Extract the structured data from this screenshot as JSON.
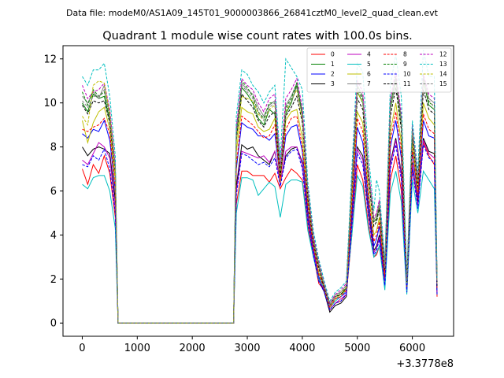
{
  "chart_data": {
    "type": "line",
    "suptitle": "Data file: modeM0/AS1A09_145T01_9000003866_26841cztM0_level2_quad_clean.evt",
    "title": "Quadrant 1 module wise count rates with 100.0s bins.",
    "xlabel": "",
    "ylabel": "",
    "x_offset_label": "+3.3778e8",
    "xlim": [
      -350,
      6750
    ],
    "ylim": [
      -0.6,
      12.6
    ],
    "x_ticks": [
      0,
      1000,
      2000,
      3000,
      4000,
      5000,
      6000
    ],
    "y_ticks": [
      0,
      2,
      4,
      6,
      8,
      10,
      12
    ],
    "x_tick_labels": [
      "0",
      "1000",
      "2000",
      "3000",
      "4000",
      "5000",
      "6000"
    ],
    "y_tick_labels": [
      "0",
      "2",
      "4",
      "6",
      "8",
      "10",
      "12"
    ],
    "legend_position": "top-right",
    "grid": false,
    "x": [
      0,
      100,
      200,
      300,
      400,
      500,
      600,
      650,
      700,
      800,
      900,
      1000,
      1100,
      1200,
      1300,
      1400,
      1500,
      1600,
      1700,
      1800,
      1900,
      2000,
      2100,
      2200,
      2300,
      2400,
      2500,
      2600,
      2700,
      2750,
      2800,
      2900,
      3000,
      3100,
      3200,
      3300,
      3400,
      3500,
      3600,
      3700,
      3800,
      3900,
      4000,
      4100,
      4200,
      4300,
      4400,
      4500,
      4600,
      4700,
      4800,
      4900,
      5000,
      5100,
      5200,
      5300,
      5350,
      5400,
      5500,
      5600,
      5700,
      5800,
      5900,
      6000,
      6100,
      6200,
      6300,
      6400,
      6450
    ],
    "series": [
      {
        "name": "0",
        "color": "#ff0000",
        "dash": "solid",
        "values": [
          7.0,
          6.3,
          7.2,
          6.8,
          7.6,
          6.8,
          4.8,
          0,
          0,
          0,
          0,
          0,
          0,
          0,
          0,
          0,
          0,
          0,
          0,
          0,
          0,
          0,
          0,
          0,
          0,
          0,
          0,
          0,
          0,
          0,
          5.4,
          6.9,
          6.9,
          6.7,
          6.7,
          6.7,
          6.4,
          6.8,
          6.1,
          6.6,
          7.0,
          6.8,
          6.5,
          4.4,
          3.1,
          1.8,
          1.5,
          0.6,
          0.9,
          1.0,
          1.3,
          4.0,
          7.2,
          6.5,
          4.5,
          3.0,
          3.1,
          3.5,
          1.8,
          6.5,
          7.6,
          6.0,
          1.5,
          7.0,
          5.5,
          8.2,
          7.6,
          7.2,
          1.2
        ]
      },
      {
        "name": "1",
        "color": "#008000",
        "dash": "solid",
        "values": [
          10.0,
          9.6,
          10.4,
          10.2,
          10.3,
          9.2,
          7.0,
          0,
          0,
          0,
          0,
          0,
          0,
          0,
          0,
          0,
          0,
          0,
          0,
          0,
          0,
          0,
          0,
          0,
          0,
          0,
          0,
          0,
          0,
          0,
          8.5,
          10.7,
          10.4,
          10.0,
          9.3,
          9.0,
          9.7,
          9.5,
          6.8,
          9.5,
          10.0,
          10.8,
          9.4,
          5.8,
          3.7,
          2.6,
          1.6,
          0.8,
          1.2,
          1.3,
          1.6,
          6.3,
          10.5,
          10.0,
          6.8,
          4.6,
          4.7,
          5.3,
          2.5,
          9.7,
          11.0,
          9.0,
          1.8,
          8.6,
          6.3,
          11.0,
          9.9,
          9.7,
          1.8
        ]
      },
      {
        "name": "2",
        "color": "#0000ff",
        "dash": "solid",
        "values": [
          8.6,
          8.4,
          8.8,
          8.7,
          9.2,
          8.3,
          6.0,
          0,
          0,
          0,
          0,
          0,
          0,
          0,
          0,
          0,
          0,
          0,
          0,
          0,
          0,
          0,
          0,
          0,
          0,
          0,
          0,
          0,
          0,
          0,
          7.0,
          9.1,
          8.9,
          8.8,
          8.5,
          8.5,
          8.3,
          8.6,
          6.5,
          8.5,
          8.9,
          9.0,
          7.8,
          5.1,
          3.4,
          2.1,
          1.5,
          0.7,
          1.1,
          1.2,
          1.4,
          5.0,
          8.9,
          8.2,
          5.6,
          3.5,
          3.8,
          4.4,
          2.0,
          8.0,
          9.2,
          7.5,
          1.6,
          7.8,
          5.7,
          9.2,
          8.5,
          8.4,
          1.4
        ]
      },
      {
        "name": "3",
        "color": "#000000",
        "dash": "solid",
        "values": [
          8.0,
          7.6,
          7.9,
          8.0,
          7.9,
          7.7,
          5.6,
          0,
          0,
          0,
          0,
          0,
          0,
          0,
          0,
          0,
          0,
          0,
          0,
          0,
          0,
          0,
          0,
          0,
          0,
          0,
          0,
          0,
          0,
          0,
          6.2,
          8.1,
          7.9,
          8.0,
          7.6,
          7.4,
          7.2,
          7.8,
          6.4,
          7.6,
          7.9,
          8.0,
          7.3,
          4.8,
          3.2,
          2.0,
          1.4,
          0.5,
          0.8,
          0.9,
          1.2,
          4.6,
          8.0,
          7.6,
          5.2,
          3.3,
          3.5,
          4.0,
          1.9,
          7.3,
          8.4,
          6.8,
          1.5,
          7.3,
          5.4,
          8.4,
          7.8,
          7.7,
          1.3
        ]
      },
      {
        "name": "4",
        "color": "#bf00bf",
        "dash": "solid",
        "values": [
          7.4,
          7.2,
          7.7,
          8.2,
          8.0,
          7.5,
          5.2,
          0,
          0,
          0,
          0,
          0,
          0,
          0,
          0,
          0,
          0,
          0,
          0,
          0,
          0,
          0,
          0,
          0,
          0,
          0,
          0,
          0,
          0,
          0,
          6.0,
          7.8,
          7.7,
          7.6,
          7.5,
          7.6,
          7.3,
          7.8,
          6.3,
          7.8,
          8.0,
          8.0,
          7.2,
          4.7,
          3.2,
          2.0,
          1.5,
          0.6,
          0.9,
          1.1,
          1.3,
          4.5,
          7.9,
          7.4,
          5.0,
          3.2,
          3.4,
          3.9,
          1.8,
          7.2,
          8.3,
          6.7,
          1.4,
          7.2,
          5.3,
          8.3,
          7.7,
          7.5,
          1.4
        ]
      },
      {
        "name": "5",
        "color": "#00bfbf",
        "dash": "solid",
        "values": [
          6.3,
          6.1,
          6.6,
          6.7,
          6.7,
          6.0,
          4.3,
          0,
          0,
          0,
          0,
          0,
          0,
          0,
          0,
          0,
          0,
          0,
          0,
          0,
          0,
          0,
          0,
          0,
          0,
          0,
          0,
          0,
          0,
          0,
          5.0,
          6.6,
          6.6,
          6.5,
          5.8,
          6.1,
          6.4,
          6.2,
          4.8,
          6.3,
          6.5,
          6.5,
          6.4,
          4.2,
          3.0,
          2.0,
          1.6,
          0.7,
          1.0,
          1.2,
          1.5,
          4.0,
          6.7,
          6.2,
          4.3,
          3.0,
          3.2,
          3.5,
          1.5,
          5.9,
          6.9,
          5.5,
          1.3,
          6.5,
          5.0,
          6.9,
          6.5,
          6.1,
          1.5
        ]
      },
      {
        "name": "6",
        "color": "#bfbf00",
        "dash": "solid",
        "values": [
          9.2,
          8.2,
          9.1,
          9.6,
          9.8,
          8.8,
          6.5,
          0,
          0,
          0,
          0,
          0,
          0,
          0,
          0,
          0,
          0,
          0,
          0,
          0,
          0,
          0,
          0,
          0,
          0,
          0,
          0,
          0,
          0,
          0,
          7.8,
          9.8,
          9.6,
          9.5,
          8.9,
          8.7,
          8.8,
          9.3,
          6.4,
          9.2,
          9.6,
          9.7,
          8.4,
          5.5,
          3.6,
          2.3,
          1.6,
          0.7,
          1.1,
          1.3,
          1.5,
          5.7,
          9.6,
          9.1,
          6.1,
          4.0,
          4.2,
          4.8,
          2.2,
          8.7,
          10.0,
          8.2,
          1.7,
          8.2,
          6.0,
          10.0,
          9.3,
          9.0,
          1.6
        ]
      },
      {
        "name": "7",
        "color": "#808080",
        "dash": "solid",
        "values": [
          10.3,
          10.0,
          10.5,
          10.2,
          10.8,
          9.5,
          7.1,
          0,
          0,
          0,
          0,
          0,
          0,
          0,
          0,
          0,
          0,
          0,
          0,
          0,
          0,
          0,
          0,
          0,
          0,
          0,
          0,
          0,
          0,
          0,
          8.7,
          10.9,
          10.6,
          10.4,
          9.8,
          9.4,
          9.9,
          10.1,
          7.0,
          9.9,
          10.3,
          10.9,
          9.6,
          6.0,
          3.9,
          2.7,
          1.7,
          0.9,
          1.3,
          1.4,
          1.7,
          6.5,
          10.8,
          10.3,
          7.0,
          4.7,
          4.9,
          5.5,
          2.6,
          10.0,
          11.2,
          9.3,
          1.9,
          8.8,
          6.5,
          11.2,
          10.2,
          10.0,
          1.9
        ]
      },
      {
        "name": "8",
        "color": "#ff0000",
        "dash": "dashed",
        "values": [
          8.8,
          8.7,
          8.9,
          9.0,
          9.3,
          8.6,
          6.1,
          0,
          0,
          0,
          0,
          0,
          0,
          0,
          0,
          0,
          0,
          0,
          0,
          0,
          0,
          0,
          0,
          0,
          0,
          0,
          0,
          0,
          0,
          0,
          7.2,
          9.4,
          9.2,
          9.0,
          8.7,
          8.4,
          8.5,
          9.0,
          6.5,
          8.8,
          9.3,
          9.4,
          8.0,
          5.3,
          3.5,
          2.2,
          1.6,
          0.7,
          1.1,
          1.2,
          1.5,
          5.3,
          9.3,
          8.7,
          5.8,
          3.7,
          4.0,
          4.6,
          2.1,
          8.3,
          9.6,
          7.8,
          1.6,
          7.9,
          5.8,
          9.5,
          8.8,
          8.6,
          1.5
        ]
      },
      {
        "name": "9",
        "color": "#008000",
        "dash": "dashed",
        "values": [
          10.5,
          9.9,
          10.6,
          10.3,
          10.5,
          9.4,
          7.0,
          0,
          0,
          0,
          0,
          0,
          0,
          0,
          0,
          0,
          0,
          0,
          0,
          0,
          0,
          0,
          0,
          0,
          0,
          0,
          0,
          0,
          0,
          0,
          8.8,
          11.0,
          10.7,
          10.3,
          9.6,
          9.3,
          10.0,
          10.0,
          6.9,
          9.8,
          10.2,
          10.9,
          9.5,
          5.9,
          3.8,
          2.6,
          1.7,
          0.8,
          1.2,
          1.4,
          1.7,
          6.4,
          10.7,
          10.2,
          6.9,
          4.6,
          4.8,
          5.4,
          2.5,
          9.9,
          11.1,
          9.2,
          1.9,
          8.8,
          6.4,
          11.1,
          10.0,
          9.9,
          1.8
        ]
      },
      {
        "name": "10",
        "color": "#0000ff",
        "dash": "dashed",
        "values": [
          7.2,
          7.1,
          7.6,
          7.4,
          7.9,
          7.0,
          5.0,
          0,
          0,
          0,
          0,
          0,
          0,
          0,
          0,
          0,
          0,
          0,
          0,
          0,
          0,
          0,
          0,
          0,
          0,
          0,
          0,
          0,
          0,
          0,
          5.8,
          7.7,
          7.6,
          7.4,
          7.2,
          7.3,
          7.1,
          7.5,
          6.2,
          7.5,
          7.8,
          7.9,
          7.0,
          4.6,
          3.1,
          1.9,
          1.4,
          0.6,
          0.9,
          1.0,
          1.3,
          4.4,
          7.7,
          7.2,
          4.9,
          3.1,
          3.3,
          3.8,
          1.7,
          7.0,
          8.1,
          6.5,
          1.4,
          7.0,
          5.2,
          8.1,
          7.5,
          7.3,
          1.3
        ]
      },
      {
        "name": "11",
        "color": "#000000",
        "dash": "dashed",
        "values": [
          9.9,
          9.5,
          10.1,
          10.0,
          10.1,
          9.1,
          6.8,
          0,
          0,
          0,
          0,
          0,
          0,
          0,
          0,
          0,
          0,
          0,
          0,
          0,
          0,
          0,
          0,
          0,
          0,
          0,
          0,
          0,
          0,
          0,
          8.3,
          10.4,
          10.1,
          9.8,
          9.2,
          8.9,
          9.4,
          9.6,
          6.7,
          9.4,
          9.8,
          10.3,
          9.1,
          5.7,
          3.7,
          2.5,
          1.6,
          0.8,
          1.2,
          1.3,
          1.6,
          6.1,
          10.2,
          9.7,
          6.6,
          4.4,
          4.6,
          5.2,
          2.4,
          9.4,
          10.7,
          8.8,
          1.8,
          8.5,
          6.2,
          10.6,
          9.7,
          9.5,
          1.7
        ]
      },
      {
        "name": "12",
        "color": "#bf00bf",
        "dash": "dashed",
        "values": [
          10.8,
          10.2,
          10.5,
          10.6,
          10.9,
          9.7,
          7.2,
          0,
          0,
          0,
          0,
          0,
          0,
          0,
          0,
          0,
          0,
          0,
          0,
          0,
          0,
          0,
          0,
          0,
          0,
          0,
          0,
          0,
          0,
          0,
          8.9,
          11.1,
          10.8,
          10.6,
          10.0,
          9.6,
          10.2,
          10.4,
          7.2,
          10.2,
          10.6,
          11.1,
          9.8,
          6.1,
          4.0,
          2.8,
          1.8,
          0.9,
          1.3,
          1.5,
          1.8,
          6.6,
          11.0,
          10.5,
          7.1,
          4.8,
          5.0,
          5.6,
          2.7,
          10.2,
          11.4,
          9.5,
          2.0,
          9.0,
          6.6,
          11.3,
          10.4,
          10.2,
          1.9
        ]
      },
      {
        "name": "13",
        "color": "#00bfbf",
        "dash": "dashed",
        "values": [
          11.2,
          10.8,
          11.5,
          11.5,
          11.8,
          10.3,
          7.6,
          0,
          0,
          0,
          0,
          0,
          0,
          0,
          0,
          0,
          0,
          0,
          0,
          0,
          0,
          0,
          0,
          0,
          0,
          0,
          0,
          0,
          0,
          0,
          9.4,
          11.5,
          11.3,
          10.8,
          10.5,
          10.0,
          10.5,
          10.8,
          7.5,
          12.0,
          11.6,
          11.2,
          10.6,
          6.4,
          4.2,
          2.9,
          1.9,
          1.0,
          1.4,
          1.6,
          1.9,
          7.0,
          11.8,
          11.4,
          7.7,
          5.1,
          6.5,
          6.0,
          2.8,
          10.8,
          12.2,
          10.3,
          2.1,
          9.2,
          6.9,
          12.4,
          11.2,
          11.2,
          2.0
        ]
      },
      {
        "name": "14",
        "color": "#bfbf00",
        "dash": "dashed",
        "values": [
          9.4,
          9.0,
          10.8,
          11.0,
          10.9,
          9.5,
          6.9,
          0,
          0,
          0,
          0,
          0,
          0,
          0,
          0,
          0,
          0,
          0,
          0,
          0,
          0,
          0,
          0,
          0,
          0,
          0,
          0,
          0,
          0,
          0,
          8.2,
          10.3,
          10.2,
          10.1,
          9.5,
          9.2,
          9.7,
          9.9,
          6.9,
          9.6,
          10.1,
          10.6,
          9.2,
          5.8,
          3.8,
          2.6,
          1.7,
          0.8,
          1.2,
          1.4,
          1.6,
          6.3,
          10.5,
          10.0,
          6.8,
          4.6,
          4.8,
          5.4,
          2.5,
          9.8,
          11.0,
          9.1,
          1.8,
          8.6,
          6.3,
          11.0,
          10.1,
          9.8,
          1.8
        ]
      },
      {
        "name": "15",
        "color": "#808080",
        "dash": "dashed",
        "values": [
          10.1,
          9.8,
          10.3,
          10.3,
          10.6,
          9.3,
          7.0,
          0,
          0,
          0,
          0,
          0,
          0,
          0,
          0,
          0,
          0,
          0,
          0,
          0,
          0,
          0,
          0,
          0,
          0,
          0,
          0,
          0,
          0,
          0,
          8.6,
          10.8,
          10.5,
          10.2,
          9.6,
          9.2,
          9.8,
          10.0,
          6.9,
          9.7,
          10.1,
          10.7,
          9.4,
          5.9,
          3.8,
          2.6,
          1.7,
          0.8,
          1.2,
          1.4,
          1.7,
          6.4,
          10.6,
          10.1,
          6.9,
          4.6,
          4.8,
          5.4,
          2.5,
          9.8,
          11.0,
          9.1,
          1.8,
          8.7,
          6.4,
          11.0,
          10.1,
          9.8,
          1.8
        ]
      }
    ]
  }
}
